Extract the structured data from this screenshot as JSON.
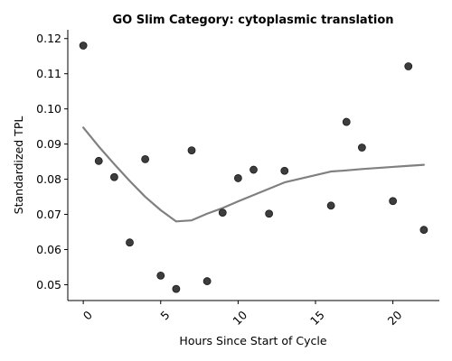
{
  "chart_data": {
    "type": "scatter",
    "title": "GO Slim Category: cytoplasmic translation",
    "xlabel": "Hours Since Start of Cycle",
    "ylabel": "Standardized TPL",
    "xlim": [
      -1,
      23
    ],
    "ylim": [
      0.0455,
      0.1225
    ],
    "x_ticks": [
      0,
      5,
      10,
      15,
      20
    ],
    "x_tick_labels": [
      "0",
      "5",
      "10",
      "15",
      "20"
    ],
    "y_ticks": [
      0.05,
      0.06,
      0.07,
      0.08,
      0.09,
      0.1,
      0.11,
      0.12
    ],
    "y_tick_labels": [
      "0.05",
      "0.06",
      "0.07",
      "0.08",
      "0.09",
      "0.10",
      "0.11",
      "0.12"
    ],
    "grid": false,
    "series": [
      {
        "type": "scatter",
        "color": "#333333",
        "x": [
          0,
          1,
          2,
          3,
          4,
          5,
          6,
          7,
          8,
          9,
          10,
          11,
          12,
          13,
          16,
          17,
          18,
          20,
          21,
          22
        ],
        "y": [
          0.118,
          0.0852,
          0.0806,
          0.062,
          0.0857,
          0.0526,
          0.0488,
          0.0882,
          0.051,
          0.0705,
          0.0803,
          0.0827,
          0.0702,
          0.0824,
          0.0725,
          0.0963,
          0.089,
          0.0738,
          0.1121,
          0.0656
        ]
      },
      {
        "type": "line",
        "color": "#808080",
        "x": [
          0,
          1,
          2,
          3,
          4,
          5,
          6,
          7,
          8,
          9,
          10,
          11,
          12,
          13,
          16,
          17,
          18,
          20,
          21,
          22
        ],
        "y": [
          0.0947,
          0.0893,
          0.0843,
          0.0795,
          0.075,
          0.0712,
          0.068,
          0.0683,
          0.0702,
          0.0718,
          0.0737,
          0.0755,
          0.0773,
          0.0791,
          0.0822,
          0.0825,
          0.0829,
          0.0835,
          0.0838,
          0.0841
        ]
      }
    ]
  }
}
